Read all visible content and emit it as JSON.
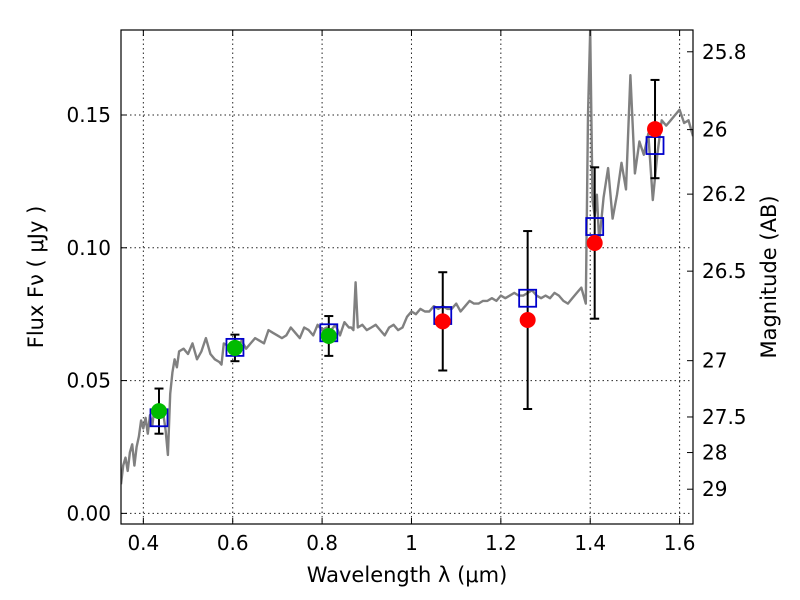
{
  "chart_data": {
    "type": "scatter",
    "xlabel": "Wavelength  λ (μm)",
    "ylabel": "Flux  Fν  ( μJy )",
    "y2label": "Magnitude (AB)",
    "xlim": [
      0.35,
      1.63
    ],
    "ylim": [
      -0.004,
      0.182
    ],
    "grid": true,
    "x_ticks": [
      {
        "value": 0.4,
        "label": "0.4"
      },
      {
        "value": 0.6,
        "label": "0.6"
      },
      {
        "value": 0.8,
        "label": "0.8"
      },
      {
        "value": 1.0,
        "label": "1"
      },
      {
        "value": 1.2,
        "label": "1.2"
      },
      {
        "value": 1.4,
        "label": "1.4"
      },
      {
        "value": 1.6,
        "label": "1.6"
      }
    ],
    "y_ticks": [
      {
        "value": 0.0,
        "label": "0.00"
      },
      {
        "value": 0.05,
        "label": "0.05"
      },
      {
        "value": 0.1,
        "label": "0.10"
      },
      {
        "value": 0.15,
        "label": "0.15"
      }
    ],
    "y2_ticks": [
      {
        "flux": 0.1738,
        "label": "25.8"
      },
      {
        "flux": 0.1445,
        "label": "26"
      },
      {
        "flux": 0.1202,
        "label": "26.2"
      },
      {
        "flux": 0.0912,
        "label": "26.5"
      },
      {
        "flux": 0.0575,
        "label": "27"
      },
      {
        "flux": 0.0363,
        "label": "27.5"
      },
      {
        "flux": 0.0229,
        "label": "28"
      },
      {
        "flux": 0.0091,
        "label": "29"
      }
    ],
    "colors": {
      "model_spectrum": "#808080",
      "model_photometry": "#0000cc",
      "detection": "#00bb00",
      "measurement": "#ff0000",
      "error_bar": "#000000"
    },
    "model_spectrum": {
      "x": [
        0.35,
        0.355,
        0.36,
        0.365,
        0.37,
        0.375,
        0.38,
        0.385,
        0.39,
        0.395,
        0.4,
        0.405,
        0.41,
        0.415,
        0.42,
        0.425,
        0.43,
        0.435,
        0.44,
        0.445,
        0.45,
        0.455,
        0.46,
        0.465,
        0.47,
        0.475,
        0.48,
        0.49,
        0.5,
        0.51,
        0.52,
        0.53,
        0.54,
        0.55,
        0.56,
        0.57,
        0.575,
        0.58,
        0.59,
        0.6,
        0.61,
        0.62,
        0.63,
        0.64,
        0.65,
        0.66,
        0.67,
        0.68,
        0.69,
        0.7,
        0.71,
        0.72,
        0.73,
        0.74,
        0.75,
        0.76,
        0.77,
        0.78,
        0.79,
        0.8,
        0.81,
        0.82,
        0.83,
        0.84,
        0.85,
        0.86,
        0.865,
        0.87,
        0.875,
        0.88,
        0.89,
        0.9,
        0.91,
        0.92,
        0.93,
        0.94,
        0.95,
        0.96,
        0.97,
        0.98,
        0.99,
        1.0,
        1.01,
        1.02,
        1.03,
        1.04,
        1.05,
        1.06,
        1.07,
        1.08,
        1.09,
        1.1,
        1.11,
        1.12,
        1.13,
        1.14,
        1.15,
        1.16,
        1.17,
        1.18,
        1.19,
        1.2,
        1.21,
        1.22,
        1.23,
        1.24,
        1.25,
        1.26,
        1.27,
        1.28,
        1.29,
        1.3,
        1.31,
        1.32,
        1.33,
        1.34,
        1.35,
        1.36,
        1.37,
        1.38,
        1.39,
        1.395,
        1.4,
        1.405,
        1.41,
        1.415,
        1.42,
        1.43,
        1.44,
        1.45,
        1.46,
        1.47,
        1.48,
        1.49,
        1.5,
        1.51,
        1.52,
        1.53,
        1.54,
        1.55,
        1.56,
        1.57,
        1.58,
        1.59,
        1.6,
        1.61,
        1.62,
        1.63
      ],
      "y": [
        0.011,
        0.018,
        0.021,
        0.016,
        0.023,
        0.026,
        0.018,
        0.025,
        0.029,
        0.035,
        0.032,
        0.036,
        0.03,
        0.037,
        0.033,
        0.04,
        0.038,
        0.041,
        0.039,
        0.037,
        0.031,
        0.022,
        0.045,
        0.053,
        0.058,
        0.055,
        0.061,
        0.062,
        0.06,
        0.064,
        0.058,
        0.061,
        0.066,
        0.06,
        0.058,
        0.057,
        0.056,
        0.064,
        0.063,
        0.06,
        0.063,
        0.065,
        0.062,
        0.064,
        0.066,
        0.065,
        0.064,
        0.069,
        0.068,
        0.067,
        0.066,
        0.067,
        0.07,
        0.068,
        0.066,
        0.07,
        0.069,
        0.067,
        0.071,
        0.069,
        0.07,
        0.069,
        0.071,
        0.067,
        0.072,
        0.07,
        0.07,
        0.069,
        0.087,
        0.07,
        0.071,
        0.069,
        0.07,
        0.071,
        0.069,
        0.067,
        0.07,
        0.071,
        0.069,
        0.07,
        0.074,
        0.076,
        0.075,
        0.077,
        0.076,
        0.076,
        0.078,
        0.077,
        0.078,
        0.077,
        0.077,
        0.079,
        0.076,
        0.078,
        0.08,
        0.079,
        0.079,
        0.08,
        0.08,
        0.081,
        0.08,
        0.082,
        0.081,
        0.082,
        0.083,
        0.082,
        0.082,
        0.083,
        0.084,
        0.082,
        0.081,
        0.082,
        0.081,
        0.083,
        0.082,
        0.08,
        0.079,
        0.081,
        0.083,
        0.085,
        0.079,
        0.15,
        0.182,
        0.118,
        0.112,
        0.12,
        0.102,
        0.119,
        0.13,
        0.111,
        0.12,
        0.132,
        0.122,
        0.165,
        0.128,
        0.14,
        0.135,
        0.143,
        0.118,
        0.135,
        0.148,
        0.146,
        0.148,
        0.15,
        0.152,
        0.147,
        0.148,
        0.142
      ]
    },
    "model_photometry": {
      "x": [
        0.435,
        0.605,
        0.815,
        1.07,
        1.26,
        1.41,
        1.545
      ],
      "y": [
        0.036,
        0.0625,
        0.068,
        0.0745,
        0.081,
        0.108,
        0.1385
      ]
    },
    "detections": {
      "x": [
        0.435,
        0.605,
        0.815
      ],
      "y": [
        0.0385,
        0.0623,
        0.0668
      ],
      "err": [
        0.0085,
        0.005,
        0.0075
      ]
    },
    "measurements": {
      "x": [
        1.07,
        1.26,
        1.41,
        1.545
      ],
      "y": [
        0.0723,
        0.0728,
        0.1018,
        0.1447
      ],
      "err": [
        0.0185,
        0.0335,
        0.0285,
        0.0185
      ]
    }
  }
}
